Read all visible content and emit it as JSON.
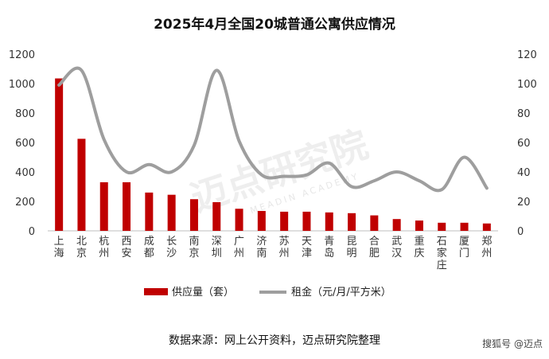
{
  "chart_data": {
    "type": "bar",
    "title": "2025年4月全国20城普通公寓供应情况",
    "categories": [
      "上海",
      "北京",
      "杭州",
      "西安",
      "成都",
      "长沙",
      "南京",
      "深圳",
      "广州",
      "济南",
      "苏州",
      "天津",
      "青岛",
      "昆明",
      "合肥",
      "武汉",
      "重庆",
      "石家庄",
      "厦门",
      "郑州"
    ],
    "series": [
      {
        "name": "供应量（套）",
        "type": "bar",
        "axis": "left",
        "color": "#c00000",
        "values": [
          1035,
          625,
          330,
          330,
          260,
          245,
          215,
          195,
          150,
          135,
          130,
          130,
          125,
          120,
          105,
          80,
          70,
          55,
          55,
          50
        ]
      },
      {
        "name": "租金（元/月/平方米）",
        "type": "line",
        "axis": "right",
        "color": "#9e9e9e",
        "values": [
          99,
          109,
          62,
          40,
          45,
          40,
          58,
          109,
          61,
          38,
          37,
          38,
          46,
          30,
          34,
          40,
          34,
          28,
          50,
          29
        ]
      }
    ],
    "y_left": {
      "ylim": [
        0,
        1200
      ],
      "ticks": [
        0,
        200,
        400,
        600,
        800,
        1000,
        1200
      ]
    },
    "y_right": {
      "ylim": [
        0,
        120
      ],
      "ticks": [
        0,
        20,
        40,
        60,
        80,
        100,
        120
      ]
    },
    "legend_position": "bottom",
    "grid": false
  },
  "watermark": {
    "text": "迈点研究院",
    "subtext": "MEADIN ACADEMY"
  },
  "source_note": "数据来源：网上公开资料，迈点研究院整理",
  "credit": "搜狐号 @迈点"
}
